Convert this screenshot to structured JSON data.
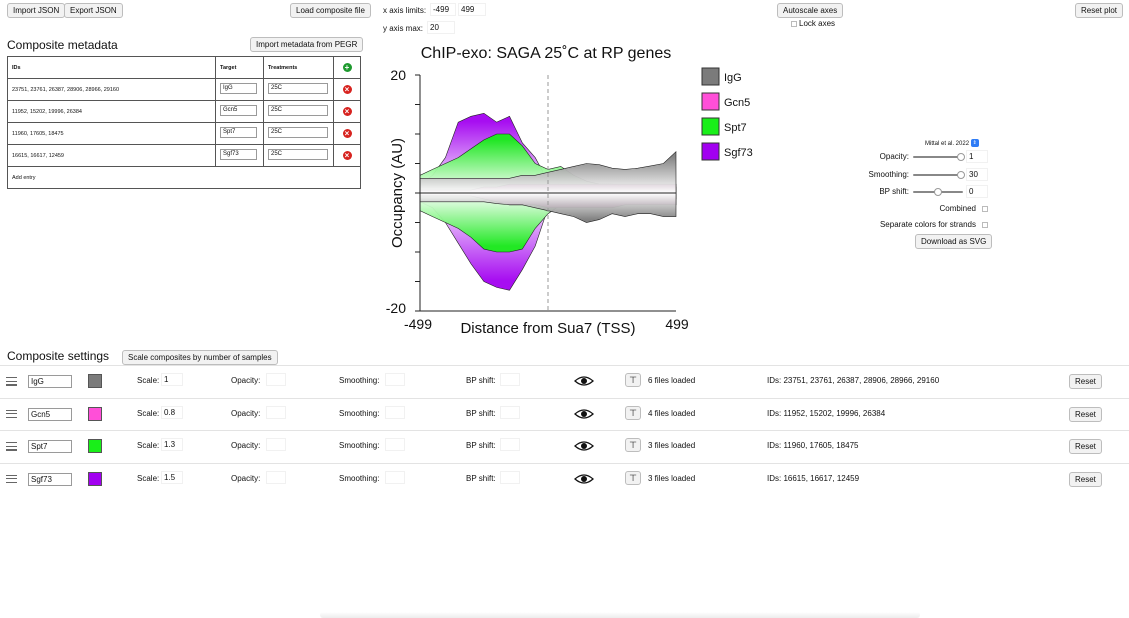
{
  "toolbar": {
    "import_json": "Import JSON",
    "export_json": "Export JSON",
    "load_composite": "Load composite file",
    "x_axis_label": "x axis limits:",
    "x_min": "-499",
    "x_max": "499",
    "y_axis_label": "y axis max:",
    "y_max": "20",
    "autoscale": "Autoscale axes",
    "lock_axes": "Lock axes",
    "reset_plot": "Reset plot"
  },
  "metadata": {
    "title": "Composite metadata",
    "import_pegr": "Import metadata from PEGR",
    "headers": [
      "IDs",
      "Target",
      "Treatments"
    ],
    "rows": [
      {
        "ids": "23751, 23761, 26387, 28906, 28966, 29160",
        "target": "IgG",
        "treatment": "25C"
      },
      {
        "ids": "11952, 15202, 19996, 26384",
        "target": "Gcn5",
        "treatment": "25C"
      },
      {
        "ids": "11960, 17605, 18475",
        "target": "Spt7",
        "treatment": "25C"
      },
      {
        "ids": "16615, 16617, 12459",
        "target": "Sgf73",
        "treatment": "25C"
      }
    ],
    "add_entry": "Add entry"
  },
  "chart_data": {
    "type": "area",
    "title": "ChIP-exo: SAGA 25˚C at RP genes",
    "xlabel": "Distance from Sua7 (TSS)",
    "ylabel": "Occupancy (AU)",
    "xlim": [
      -499,
      499
    ],
    "ylim": [
      -20,
      20
    ],
    "x_ticks": [
      "-499",
      "499"
    ],
    "y_ticks": [
      "20",
      "-20"
    ],
    "legend_position": "right",
    "x": [
      -499,
      -450,
      -400,
      -350,
      -300,
      -250,
      -200,
      -150,
      -100,
      -50,
      0,
      50,
      100,
      150,
      200,
      250,
      300,
      350,
      400,
      450,
      499
    ],
    "series": [
      {
        "name": "IgG",
        "color": "#7b7b7b",
        "forward": [
          2.5,
          2.5,
          2.5,
          2.5,
          2.5,
          2.5,
          2.5,
          2.5,
          3,
          3,
          3.5,
          4,
          4.5,
          5,
          4.8,
          4.2,
          4,
          4.2,
          4.6,
          5,
          7
        ],
        "reverse": [
          -1.5,
          -1.5,
          -1.5,
          -1.5,
          -1.5,
          -1.5,
          -1.8,
          -2,
          -2,
          -2.5,
          -3,
          -3.5,
          -4,
          -5,
          -4.5,
          -3.5,
          -4,
          -3.5,
          -3.5,
          -4,
          -4
        ]
      },
      {
        "name": "Gcn5",
        "color": "#ff4fd8",
        "forward": [
          0.5,
          0.5,
          0.5,
          0.5,
          0.5,
          1,
          1,
          1.5,
          1.5,
          1.5,
          1.5,
          1.5,
          1.5,
          1.5,
          1.5,
          1.5,
          1.5,
          1.5,
          1.5,
          1.5,
          1.5
        ],
        "reverse": [
          -0.5,
          -0.5,
          -0.5,
          -0.5,
          -0.5,
          -1,
          -1.5,
          -2,
          -2,
          -2,
          -2.5,
          -2.5,
          -2.5,
          -2.5,
          -2.5,
          -2.5,
          -2,
          -2,
          -2,
          -2,
          -2
        ]
      },
      {
        "name": "Spt7",
        "color": "#19ef19",
        "forward": [
          3,
          4,
          5,
          6,
          7.5,
          9,
          10,
          10,
          8,
          5,
          4,
          4.5,
          3,
          2,
          1.5,
          1.5,
          1,
          1,
          1,
          1,
          1
        ],
        "reverse": [
          -3,
          -4,
          -5,
          -6,
          -7.5,
          -9.5,
          -10,
          -10,
          -9.5,
          -6,
          -3.5,
          -2,
          -1.5,
          -1,
          -1,
          -1,
          -1,
          -1,
          -1,
          -1,
          -1
        ]
      },
      {
        "name": "Sgf73",
        "color": "#a200f0",
        "forward": [
          1.5,
          3,
          6,
          12,
          13,
          13.5,
          12,
          13,
          8.5,
          6,
          2,
          1.5,
          1,
          1,
          1,
          1,
          1,
          1,
          1,
          1,
          1
        ],
        "reverse": [
          -1.5,
          -2.5,
          -5,
          -8.5,
          -12,
          -15,
          -16,
          -16.5,
          -13,
          -9,
          -2.5,
          -1.5,
          -1,
          -1,
          -1,
          -1,
          -1,
          -1,
          -1,
          -1,
          -1
        ]
      }
    ]
  },
  "plot_controls": {
    "preset": "Mittal et al. 2022",
    "opacity_label": "Opacity:",
    "opacity_value": "1",
    "smoothing_label": "Smoothing:",
    "smoothing_value": "30",
    "bp_shift_label": "BP shift:",
    "bp_shift_value": "0",
    "combined_label": "Combined",
    "separate_label": "Separate colors for strands",
    "download_svg": "Download as SVG"
  },
  "composite_settings": {
    "title": "Composite settings",
    "scale_button": "Scale composites by number of samples",
    "scale_label": "Scale:",
    "opacity_label": "Opacity:",
    "smoothing_label": "Smoothing:",
    "bp_shift_label": "BP shift:",
    "reset_label": "Reset",
    "rows": [
      {
        "name": "IgG",
        "color": "#7b7b7b",
        "scale": "1",
        "files": "6 files loaded",
        "ids": "IDs: 23751, 23761, 26387, 28906, 28966, 29160"
      },
      {
        "name": "Gcn5",
        "color": "#ff4fd8",
        "scale": "0.8",
        "files": "4 files loaded",
        "ids": "IDs: 11952, 15202, 19996, 26384"
      },
      {
        "name": "Spt7",
        "color": "#19ef19",
        "scale": "1.3",
        "files": "3 files loaded",
        "ids": "IDs: 11960, 17605, 18475"
      },
      {
        "name": "Sgf73",
        "color": "#a200f0",
        "scale": "1.5",
        "files": "3 files loaded",
        "ids": "IDs: 16615, 16617, 12459"
      }
    ]
  }
}
